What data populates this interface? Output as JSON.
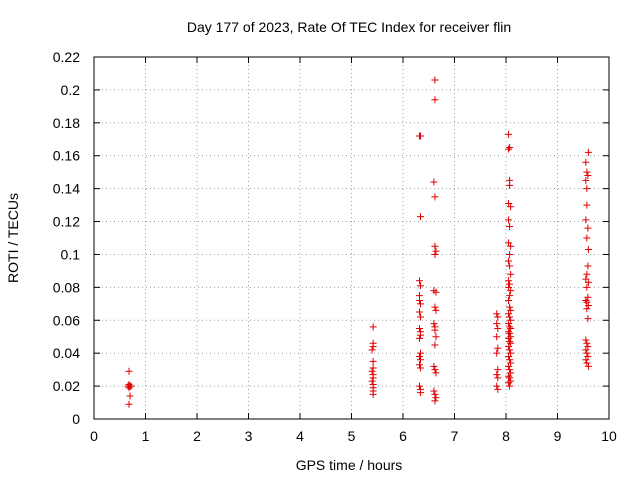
{
  "chart_data": {
    "type": "scatter",
    "title": "Day 177 of 2023, Rate Of TEC Index for receiver flin",
    "xlabel": "GPS time / hours",
    "ylabel": "ROTI / TECUs",
    "xlim": [
      0,
      10
    ],
    "ylim": [
      0,
      0.22
    ],
    "xticks": [
      "0",
      "1",
      "2",
      "3",
      "4",
      "5",
      "6",
      "7",
      "8",
      "9",
      "10"
    ],
    "yticks": [
      "0",
      "0.02",
      "0.04",
      "0.06",
      "0.08",
      "0.1",
      "0.12",
      "0.14",
      "0.16",
      "0.18",
      "0.2",
      "0.22"
    ],
    "grid": true,
    "marker": "plus",
    "color": "#e00000",
    "series": [
      {
        "points": [
          [
            0.68,
            0.029
          ],
          [
            0.68,
            0.021
          ],
          [
            0.7,
            0.02
          ],
          [
            0.66,
            0.02
          ],
          [
            0.72,
            0.02
          ],
          [
            0.68,
            0.019
          ],
          [
            0.7,
            0.014
          ],
          [
            0.68,
            0.009
          ],
          [
            5.42,
            0.056
          ],
          [
            5.42,
            0.046
          ],
          [
            5.42,
            0.044
          ],
          [
            5.4,
            0.042
          ],
          [
            5.42,
            0.035
          ],
          [
            5.42,
            0.031
          ],
          [
            5.4,
            0.029
          ],
          [
            5.42,
            0.027
          ],
          [
            5.42,
            0.025
          ],
          [
            5.4,
            0.023
          ],
          [
            5.42,
            0.021
          ],
          [
            5.42,
            0.019
          ],
          [
            5.42,
            0.017
          ],
          [
            5.42,
            0.015
          ],
          [
            6.32,
            0.172
          ],
          [
            6.34,
            0.172
          ],
          [
            6.34,
            0.123
          ],
          [
            6.32,
            0.084
          ],
          [
            6.34,
            0.081
          ],
          [
            6.32,
            0.075
          ],
          [
            6.32,
            0.072
          ],
          [
            6.34,
            0.07
          ],
          [
            6.32,
            0.065
          ],
          [
            6.34,
            0.062
          ],
          [
            6.32,
            0.055
          ],
          [
            6.34,
            0.053
          ],
          [
            6.34,
            0.051
          ],
          [
            6.32,
            0.049
          ],
          [
            6.34,
            0.04
          ],
          [
            6.32,
            0.038
          ],
          [
            6.34,
            0.036
          ],
          [
            6.32,
            0.033
          ],
          [
            6.34,
            0.031
          ],
          [
            6.32,
            0.02
          ],
          [
            6.34,
            0.018
          ],
          [
            6.34,
            0.016
          ],
          [
            6.62,
            0.206
          ],
          [
            6.62,
            0.194
          ],
          [
            6.6,
            0.144
          ],
          [
            6.62,
            0.135
          ],
          [
            6.62,
            0.105
          ],
          [
            6.64,
            0.102
          ],
          [
            6.62,
            0.1
          ],
          [
            6.6,
            0.078
          ],
          [
            6.64,
            0.077
          ],
          [
            6.62,
            0.068
          ],
          [
            6.64,
            0.066
          ],
          [
            6.6,
            0.058
          ],
          [
            6.62,
            0.056
          ],
          [
            6.62,
            0.054
          ],
          [
            6.64,
            0.05
          ],
          [
            6.62,
            0.045
          ],
          [
            6.6,
            0.032
          ],
          [
            6.62,
            0.03
          ],
          [
            6.64,
            0.028
          ],
          [
            6.6,
            0.017
          ],
          [
            6.62,
            0.015
          ],
          [
            6.64,
            0.013
          ],
          [
            6.62,
            0.011
          ],
          [
            7.82,
            0.064
          ],
          [
            7.84,
            0.062
          ],
          [
            7.82,
            0.058
          ],
          [
            7.84,
            0.055
          ],
          [
            7.82,
            0.05
          ],
          [
            7.84,
            0.043
          ],
          [
            7.82,
            0.04
          ],
          [
            7.84,
            0.03
          ],
          [
            7.82,
            0.027
          ],
          [
            7.84,
            0.025
          ],
          [
            7.82,
            0.02
          ],
          [
            7.84,
            0.018
          ],
          [
            8.05,
            0.173
          ],
          [
            8.07,
            0.165
          ],
          [
            8.05,
            0.164
          ],
          [
            8.07,
            0.145
          ],
          [
            8.07,
            0.142
          ],
          [
            8.05,
            0.131
          ],
          [
            8.09,
            0.129
          ],
          [
            8.05,
            0.121
          ],
          [
            8.07,
            0.117
          ],
          [
            8.05,
            0.107
          ],
          [
            8.09,
            0.105
          ],
          [
            8.07,
            0.1
          ],
          [
            8.05,
            0.096
          ],
          [
            8.07,
            0.093
          ],
          [
            8.09,
            0.088
          ],
          [
            8.05,
            0.084
          ],
          [
            8.07,
            0.082
          ],
          [
            8.05,
            0.08
          ],
          [
            8.09,
            0.078
          ],
          [
            8.07,
            0.075
          ],
          [
            8.05,
            0.072
          ],
          [
            8.07,
            0.068
          ],
          [
            8.09,
            0.066
          ],
          [
            8.05,
            0.064
          ],
          [
            8.07,
            0.062
          ],
          [
            8.09,
            0.06
          ],
          [
            8.05,
            0.058
          ],
          [
            8.07,
            0.056
          ],
          [
            8.09,
            0.055
          ],
          [
            8.05,
            0.053
          ],
          [
            8.07,
            0.052
          ],
          [
            8.09,
            0.05
          ],
          [
            8.05,
            0.049
          ],
          [
            8.07,
            0.047
          ],
          [
            8.09,
            0.046
          ],
          [
            8.05,
            0.044
          ],
          [
            8.07,
            0.042
          ],
          [
            8.09,
            0.04
          ],
          [
            8.05,
            0.038
          ],
          [
            8.07,
            0.036
          ],
          [
            8.09,
            0.034
          ],
          [
            8.05,
            0.032
          ],
          [
            8.07,
            0.03
          ],
          [
            8.09,
            0.028
          ],
          [
            8.05,
            0.026
          ],
          [
            8.07,
            0.025
          ],
          [
            8.09,
            0.023
          ],
          [
            8.05,
            0.022
          ],
          [
            8.07,
            0.02
          ],
          [
            9.55,
            0.156
          ],
          [
            9.6,
            0.162
          ],
          [
            9.57,
            0.15
          ],
          [
            9.59,
            0.148
          ],
          [
            9.55,
            0.145
          ],
          [
            9.57,
            0.14
          ],
          [
            9.57,
            0.13
          ],
          [
            9.55,
            0.121
          ],
          [
            9.59,
            0.116
          ],
          [
            9.57,
            0.11
          ],
          [
            9.6,
            0.103
          ],
          [
            9.59,
            0.093
          ],
          [
            9.57,
            0.088
          ],
          [
            9.55,
            0.085
          ],
          [
            9.6,
            0.083
          ],
          [
            9.57,
            0.08
          ],
          [
            9.59,
            0.074
          ],
          [
            9.55,
            0.072
          ],
          [
            9.57,
            0.071
          ],
          [
            9.6,
            0.069
          ],
          [
            9.57,
            0.067
          ],
          [
            9.59,
            0.061
          ],
          [
            9.55,
            0.048
          ],
          [
            9.57,
            0.046
          ],
          [
            9.59,
            0.044
          ],
          [
            9.55,
            0.042
          ],
          [
            9.57,
            0.04
          ],
          [
            9.59,
            0.038
          ],
          [
            9.55,
            0.036
          ],
          [
            9.57,
            0.034
          ],
          [
            9.6,
            0.032
          ]
        ]
      }
    ]
  }
}
